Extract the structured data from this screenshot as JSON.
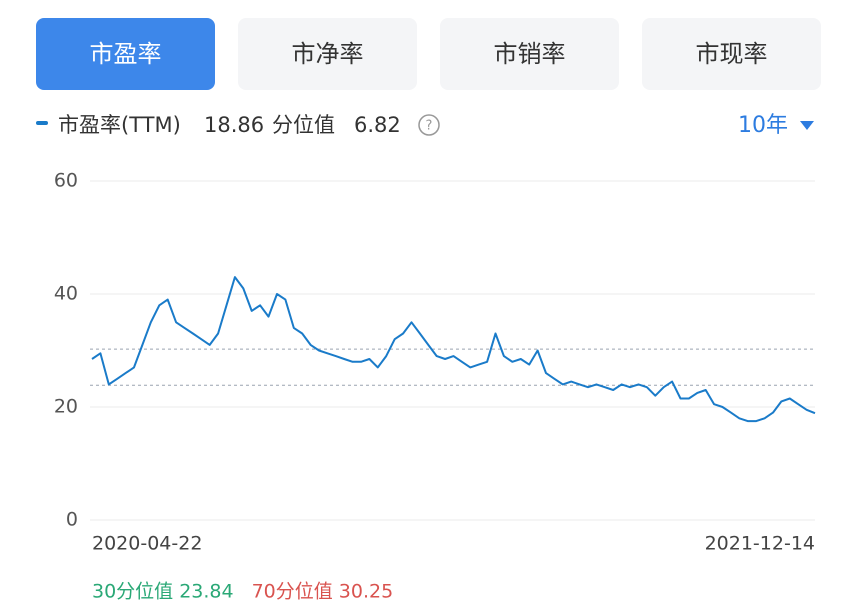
{
  "tabs": [
    "市盈率",
    "市净率",
    "市销率",
    "市现率"
  ],
  "range": "10年",
  "chart_data": {
    "type": "line",
    "series_label": "市盈率(TTM)",
    "current_value": 18.86,
    "percentile_label": "分位值",
    "percentile_value": 6.82,
    "categories": [
      "2020-04-22",
      null,
      null,
      null,
      null,
      null,
      null,
      null,
      null,
      null,
      null,
      null,
      null,
      null,
      null,
      null,
      null,
      null,
      null,
      null,
      null,
      null,
      null,
      null,
      null,
      null,
      null,
      null,
      null,
      null,
      null,
      null,
      null,
      null,
      null,
      null,
      null,
      null,
      null,
      null,
      null,
      null,
      null,
      null,
      null,
      null,
      null,
      null,
      null,
      null,
      null,
      null,
      null,
      null,
      null,
      null,
      null,
      null,
      null,
      null,
      null,
      null,
      null,
      null,
      null,
      null,
      null,
      null,
      null,
      null,
      null,
      null,
      null,
      null,
      null,
      null,
      null,
      null,
      null,
      null,
      null,
      null,
      null,
      null,
      null,
      null,
      "2021-12-14"
    ],
    "values": [
      28.5,
      29.5,
      24,
      25,
      26,
      27,
      31,
      35,
      38,
      39,
      35,
      34,
      33,
      32,
      31,
      33,
      38,
      43,
      41,
      37,
      38,
      36,
      40,
      39,
      34,
      33,
      31,
      30,
      29.5,
      29,
      28.5,
      28,
      28,
      28.5,
      27,
      29,
      32,
      33,
      35,
      33,
      31,
      29,
      28.5,
      29,
      28,
      27,
      27.5,
      28,
      33,
      29,
      28,
      28.5,
      27.5,
      30,
      26,
      25,
      24,
      24.5,
      24,
      23.5,
      24,
      23.5,
      23,
      24,
      23.5,
      24,
      23.5,
      22,
      23.5,
      24.5,
      21.5,
      21.5,
      22.5,
      23,
      20.5,
      20,
      19,
      18,
      17.5,
      17.5,
      18,
      19,
      21,
      21.5,
      20.5,
      19.5,
      18.9
    ],
    "color": "#1a7bc9",
    "ylim": [
      0,
      60
    ],
    "yticks": [
      0,
      20,
      40,
      60
    ],
    "grid": true,
    "reference_lines": [
      {
        "label": "30分位值",
        "value": 23.84,
        "color": "#2aa876"
      },
      {
        "label": "70分位值",
        "value": 30.25,
        "color": "#d9534f"
      }
    ]
  }
}
